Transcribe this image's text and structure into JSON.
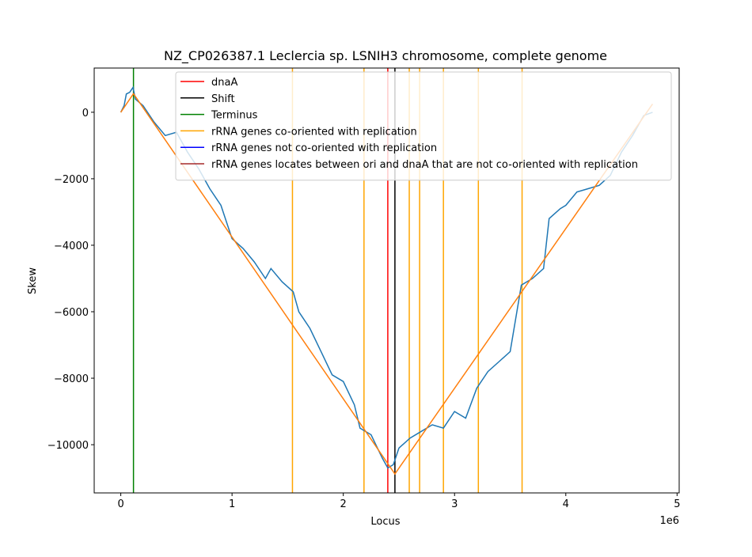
{
  "chart_data": {
    "type": "line",
    "title": "NZ_CP026387.1 Leclercia sp. LSNIH3 chromosome, complete genome",
    "x_label": "Locus",
    "y_label": "Skew",
    "x_offset_label": "1e6",
    "xlim": [
      -239000,
      5019000
    ],
    "ylim": [
      -11450,
      1330
    ],
    "xticks": [
      0,
      {
        "value": 1000000,
        "label": "1"
      },
      {
        "value": 2000000,
        "label": "2"
      },
      {
        "value": 3000000,
        "label": "3"
      },
      {
        "value": 4000000,
        "label": "4"
      },
      {
        "value": 5000000,
        "label": "5"
      }
    ],
    "yticks": [
      {
        "value": -10000,
        "label": "−10000"
      },
      {
        "value": -8000,
        "label": "−8000"
      },
      {
        "value": -6000,
        "label": "−6000"
      },
      {
        "value": -4000,
        "label": "−4000"
      },
      {
        "value": -2000,
        "label": "−2000"
      },
      0
    ],
    "series": [
      {
        "color": "#1f77b4",
        "x": [
          0,
          30000,
          50000,
          80000,
          110000,
          130000,
          200000,
          300000,
          400000,
          500000,
          600000,
          700000,
          800000,
          900000,
          1000000,
          1100000,
          1200000,
          1300000,
          1350000,
          1450000,
          1550000,
          1600000,
          1700000,
          1800000,
          1900000,
          2000000,
          2100000,
          2150000,
          2250000,
          2350000,
          2400000,
          2450000,
          2500000,
          2600000,
          2700000,
          2800000,
          2900000,
          3000000,
          3100000,
          3200000,
          3300000,
          3400000,
          3500000,
          3600000,
          3700000,
          3800000,
          3850000,
          3950000,
          4000000,
          4100000,
          4200000,
          4300000,
          4400000,
          4500000,
          4600000,
          4700000,
          4780000
        ],
        "values": [
          0,
          200,
          550,
          600,
          750,
          400,
          200,
          -300,
          -700,
          -600,
          -1200,
          -1700,
          -2300,
          -2800,
          -3800,
          -4100,
          -4500,
          -5000,
          -4700,
          -5100,
          -5400,
          -6000,
          -6500,
          -7200,
          -7900,
          -8100,
          -8800,
          -9500,
          -9700,
          -10400,
          -10700,
          -10600,
          -10100,
          -9800,
          -9600,
          -9400,
          -9500,
          -9000,
          -9200,
          -8300,
          -7800,
          -7500,
          -7200,
          -5200,
          -5000,
          -4700,
          -3200,
          -2900,
          -2800,
          -2400,
          -2300,
          -2200,
          -1900,
          -1200,
          -700,
          -100,
          0
        ]
      },
      {
        "color": "#ff7f0e",
        "x": [
          0,
          114000,
          2464000,
          4780000
        ],
        "values": [
          0,
          560,
          -10880,
          250
        ]
      }
    ],
    "vlines": [
      {
        "name": "dnaA",
        "color": "#ff0000",
        "x": [
          2400000
        ]
      },
      {
        "name": "Shift",
        "color": "#000000",
        "x": [
          2464000
        ]
      },
      {
        "name": "Terminus",
        "color": "#008000",
        "x": [
          114000
        ]
      },
      {
        "name": "rRNA genes co-oriented with replication",
        "color": "#ffa500",
        "x": [
          1543000,
          2186000,
          2593000,
          2686000,
          2900000,
          3214000,
          3607000
        ]
      },
      {
        "name": "rRNA genes not co-oriented with replication",
        "color": "#0000ff",
        "x": []
      },
      {
        "name": "rRNA genes locates between ori and dnaA that are not co-oriented with replication",
        "color": "#a52a2a",
        "x": []
      }
    ]
  }
}
